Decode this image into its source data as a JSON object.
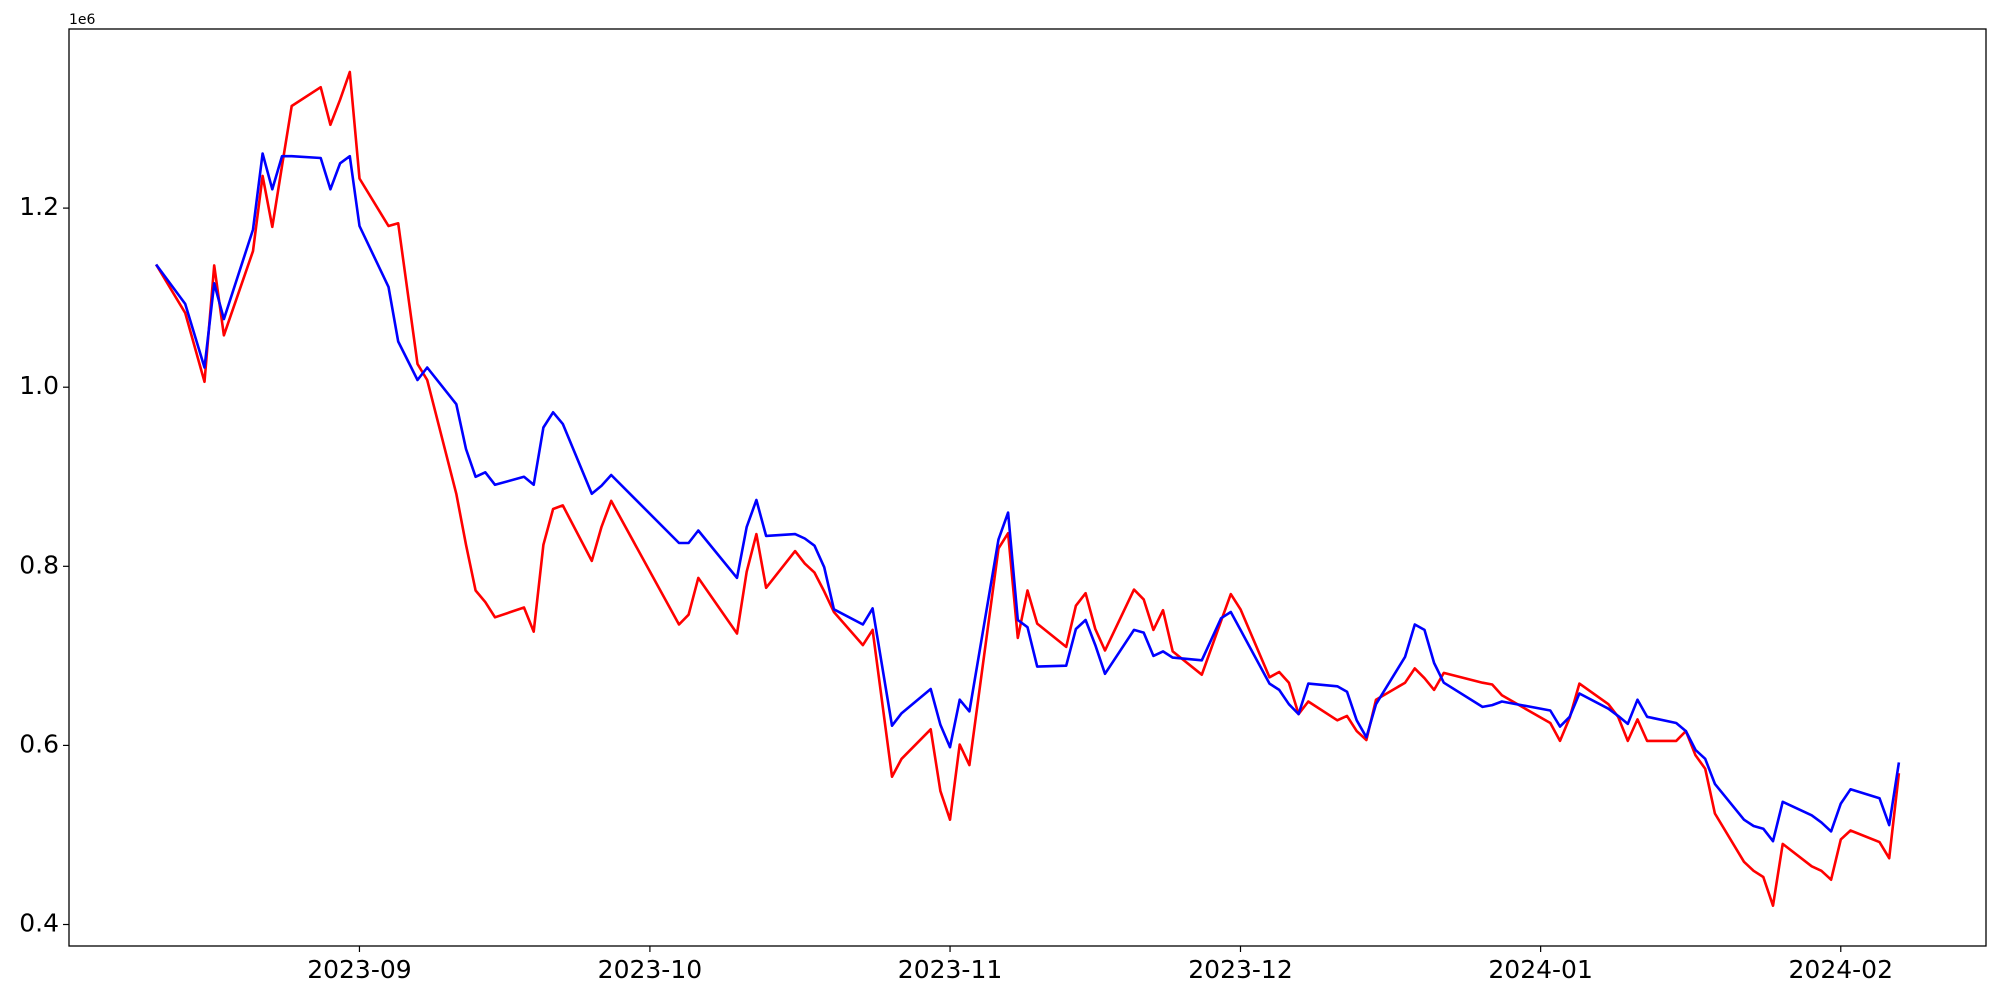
{
  "chart_data": {
    "type": "line",
    "y_offset_label": "1e6",
    "x": [
      -21,
      -18,
      -16,
      -15,
      -14,
      -11,
      -10,
      -9,
      -8,
      -7,
      -4,
      -3,
      -2,
      -1,
      0,
      3,
      4,
      6,
      7,
      10,
      11,
      12,
      13,
      14,
      17,
      18,
      19,
      20,
      21,
      24,
      25,
      26,
      33,
      34,
      35,
      39,
      40,
      41,
      42,
      45,
      46,
      47,
      48,
      49,
      52,
      53,
      55,
      56,
      59,
      60,
      61,
      62,
      63,
      66,
      67,
      68,
      69,
      70,
      73,
      74,
      75,
      76,
      77,
      80,
      81,
      82,
      83,
      84,
      87,
      89,
      90,
      91,
      94,
      95,
      96,
      97,
      98,
      101,
      102,
      103,
      104,
      105,
      108,
      109,
      110,
      111,
      112,
      116,
      117,
      118,
      123,
      124,
      125,
      126,
      129,
      130,
      131,
      132,
      133,
      136,
      137,
      138,
      139,
      140,
      143,
      144,
      145,
      146,
      147,
      150,
      151,
      152,
      153,
      154,
      157,
      158,
      159
    ],
    "series": [
      {
        "name": "red",
        "color": "#ff0000",
        "values": [
          1.137,
          1.083,
          1.006,
          1.136,
          1.058,
          1.152,
          1.236,
          1.179,
          1.247,
          1.314,
          1.335,
          1.293,
          1.321,
          1.352,
          1.233,
          1.18,
          1.183,
          1.026,
          1.008,
          0.881,
          0.824,
          0.773,
          0.76,
          0.743,
          0.754,
          0.727,
          0.824,
          0.864,
          0.868,
          0.806,
          0.844,
          0.873,
          0.735,
          0.746,
          0.787,
          0.725,
          0.794,
          0.836,
          0.776,
          0.817,
          0.803,
          0.793,
          0.772,
          0.749,
          0.712,
          0.729,
          0.565,
          0.585,
          0.618,
          0.549,
          0.517,
          0.601,
          0.578,
          0.82,
          0.837,
          0.72,
          0.773,
          0.736,
          0.71,
          0.756,
          0.77,
          0.73,
          0.706,
          0.774,
          0.763,
          0.729,
          0.751,
          0.705,
          0.679,
          0.739,
          0.769,
          0.752,
          0.676,
          0.682,
          0.67,
          0.635,
          0.649,
          0.628,
          0.633,
          0.616,
          0.606,
          0.651,
          0.67,
          0.686,
          0.675,
          0.662,
          0.681,
          0.67,
          0.668,
          0.656,
          0.625,
          0.605,
          0.631,
          0.669,
          0.646,
          0.632,
          0.605,
          0.629,
          0.605,
          0.605,
          0.616,
          0.589,
          0.574,
          0.524,
          0.47,
          0.46,
          0.453,
          0.421,
          0.49,
          0.465,
          0.46,
          0.45,
          0.495,
          0.505,
          0.492,
          0.474,
          0.569
        ]
      },
      {
        "name": "blue",
        "color": "#0000ff",
        "values": [
          1.137,
          1.093,
          1.022,
          1.116,
          1.076,
          1.176,
          1.261,
          1.221,
          1.258,
          1.258,
          1.256,
          1.221,
          1.25,
          1.258,
          1.18,
          1.112,
          1.051,
          1.008,
          1.022,
          0.981,
          0.931,
          0.9,
          0.905,
          0.891,
          0.9,
          0.891,
          0.955,
          0.972,
          0.959,
          0.881,
          0.89,
          0.902,
          0.826,
          0.826,
          0.84,
          0.787,
          0.844,
          0.874,
          0.834,
          0.836,
          0.831,
          0.823,
          0.799,
          0.752,
          0.735,
          0.753,
          0.622,
          0.636,
          0.663,
          0.623,
          0.598,
          0.651,
          0.638,
          0.83,
          0.86,
          0.74,
          0.732,
          0.688,
          0.689,
          0.73,
          0.74,
          0.712,
          0.68,
          0.729,
          0.726,
          0.7,
          0.705,
          0.698,
          0.695,
          0.742,
          0.749,
          0.729,
          0.669,
          0.662,
          0.646,
          0.635,
          0.669,
          0.666,
          0.66,
          0.628,
          0.609,
          0.646,
          0.699,
          0.735,
          0.729,
          0.692,
          0.67,
          0.643,
          0.645,
          0.649,
          0.639,
          0.621,
          0.632,
          0.658,
          0.641,
          0.633,
          0.624,
          0.651,
          0.632,
          0.625,
          0.616,
          0.595,
          0.585,
          0.557,
          0.517,
          0.51,
          0.507,
          0.493,
          0.537,
          0.522,
          0.514,
          0.504,
          0.535,
          0.551,
          0.541,
          0.511,
          0.581
        ]
      }
    ],
    "xlim": [
      -30,
      168
    ],
    "xticks": [
      {
        "value": 0,
        "label": "2023-09"
      },
      {
        "value": 30,
        "label": "2023-10"
      },
      {
        "value": 61,
        "label": "2023-11"
      },
      {
        "value": 91,
        "label": "2023-12"
      },
      {
        "value": 122,
        "label": "2024-01"
      },
      {
        "value": 153,
        "label": "2024-02"
      }
    ],
    "ylim": [
      0.376,
      1.4
    ],
    "yticks": [
      0.4,
      0.6,
      0.8,
      {
        "value": 1,
        "label": "1.0"
      },
      1.2
    ],
    "grid": false
  }
}
